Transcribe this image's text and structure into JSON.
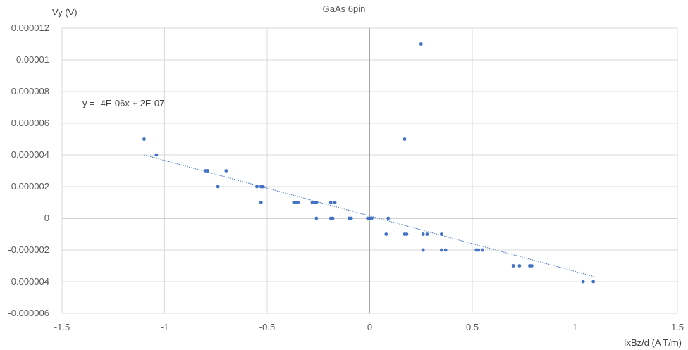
{
  "chart_data": {
    "type": "scatter",
    "title": "GaAs 6pin",
    "xlabel": "IxBz/d (A T/m)",
    "ylabel": "Vy (V)",
    "xlim": [
      -1.5,
      1.5
    ],
    "ylim": [
      -6e-06,
      1.2e-05
    ],
    "x_ticks": [
      -1.5,
      -1,
      -0.5,
      0,
      0.5,
      1,
      1.5
    ],
    "x_tick_labels": [
      "-1.5",
      "-1",
      "-0.5",
      "0",
      "0.5",
      "1",
      "1.5"
    ],
    "y_ticks": [
      -6e-06,
      -4e-06,
      -2e-06,
      0,
      2e-06,
      4e-06,
      6e-06,
      8e-06,
      1e-05,
      1.2e-05
    ],
    "y_tick_labels": [
      "-0.000006",
      "-0.000004",
      "-0.000002",
      "0",
      "0.000002",
      "0.000004",
      "0.000006",
      "0.000008",
      "0.00001",
      "0.000012"
    ],
    "grid": true,
    "legend": "none",
    "marker_color": "#4472C4",
    "trendline": {
      "type": "linear",
      "equation": "y = -4E-06x + 2E-07",
      "slope": -3.5e-06,
      "intercept": 1.5e-07,
      "x_range": [
        -1.1,
        1.1
      ]
    },
    "points": [
      {
        "x": -1.1,
        "y": 5e-06
      },
      {
        "x": -1.04,
        "y": 4e-06
      },
      {
        "x": -0.8,
        "y": 3e-06
      },
      {
        "x": -0.79,
        "y": 3e-06
      },
      {
        "x": -0.7,
        "y": 3e-06
      },
      {
        "x": -0.74,
        "y": 2e-06
      },
      {
        "x": -0.55,
        "y": 2e-06
      },
      {
        "x": -0.53,
        "y": 2e-06
      },
      {
        "x": -0.52,
        "y": 2e-06
      },
      {
        "x": -0.53,
        "y": 1e-06
      },
      {
        "x": -0.37,
        "y": 1e-06
      },
      {
        "x": -0.36,
        "y": 1e-06
      },
      {
        "x": -0.35,
        "y": 1e-06
      },
      {
        "x": -0.28,
        "y": 1e-06
      },
      {
        "x": -0.27,
        "y": 1e-06
      },
      {
        "x": -0.26,
        "y": 1e-06
      },
      {
        "x": -0.19,
        "y": 1e-06
      },
      {
        "x": -0.17,
        "y": 1e-06
      },
      {
        "x": -0.26,
        "y": 0
      },
      {
        "x": -0.19,
        "y": 0
      },
      {
        "x": -0.18,
        "y": 0
      },
      {
        "x": -0.1,
        "y": 0
      },
      {
        "x": -0.09,
        "y": 0
      },
      {
        "x": -0.01,
        "y": 0
      },
      {
        "x": 0.0,
        "y": 0
      },
      {
        "x": 0.01,
        "y": 0
      },
      {
        "x": 0.09,
        "y": 0
      },
      {
        "x": 0.08,
        "y": -1e-06
      },
      {
        "x": 0.17,
        "y": -1e-06
      },
      {
        "x": 0.18,
        "y": -1e-06
      },
      {
        "x": 0.26,
        "y": -1e-06
      },
      {
        "x": 0.28,
        "y": -1e-06
      },
      {
        "x": 0.35,
        "y": -1e-06
      },
      {
        "x": 0.26,
        "y": -2e-06
      },
      {
        "x": 0.35,
        "y": -2e-06
      },
      {
        "x": 0.37,
        "y": -2e-06
      },
      {
        "x": 0.52,
        "y": -2e-06
      },
      {
        "x": 0.53,
        "y": -2e-06
      },
      {
        "x": 0.55,
        "y": -2e-06
      },
      {
        "x": 0.7,
        "y": -3e-06
      },
      {
        "x": 0.73,
        "y": -3e-06
      },
      {
        "x": 0.78,
        "y": -3e-06
      },
      {
        "x": 0.79,
        "y": -3e-06
      },
      {
        "x": 1.04,
        "y": -4e-06
      },
      {
        "x": 1.09,
        "y": -4e-06
      },
      {
        "x": 0.17,
        "y": 5e-06
      },
      {
        "x": 0.25,
        "y": 1.1e-05
      }
    ]
  }
}
